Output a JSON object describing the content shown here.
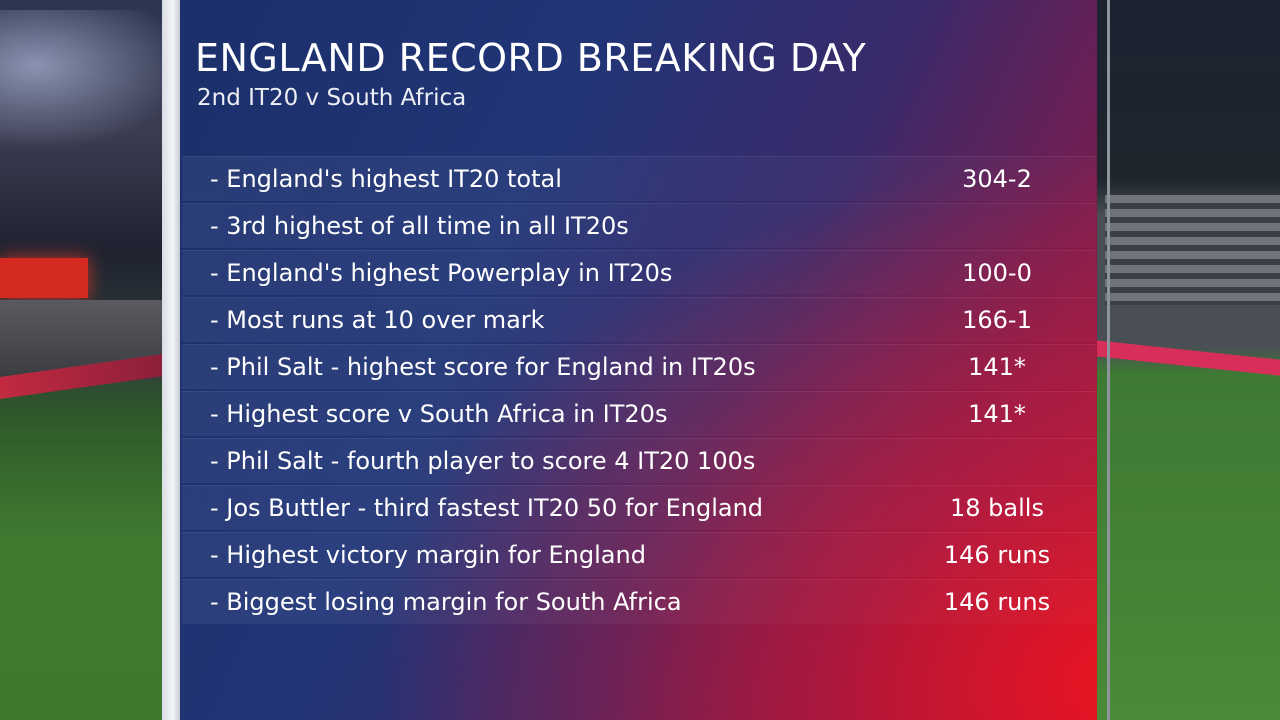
{
  "title": "ENGLAND RECORD BREAKING DAY",
  "subtitle": "2nd IT20 v South Africa",
  "records": [
    {
      "label": "- England's highest IT20 total",
      "value": "304-2"
    },
    {
      "label": "- 3rd highest of all time in all IT20s",
      "value": ""
    },
    {
      "label": "- England's highest Powerplay in IT20s",
      "value": "100-0"
    },
    {
      "label": "- Most runs at 10 over mark",
      "value": "166-1"
    },
    {
      "label": "- Phil Salt - highest score for England in IT20s",
      "value": "141*"
    },
    {
      "label": "- Highest score v South Africa in IT20s",
      "value": "141*"
    },
    {
      "label": "- Phil Salt - fourth player to score 4 IT20 100s",
      "value": ""
    },
    {
      "label": "- Jos Buttler - third fastest IT20 50 for England",
      "value": "18 balls"
    },
    {
      "label": "- Highest victory margin for England",
      "value": "146 runs"
    },
    {
      "label": "- Biggest losing margin for South Africa",
      "value": "146 runs"
    }
  ]
}
